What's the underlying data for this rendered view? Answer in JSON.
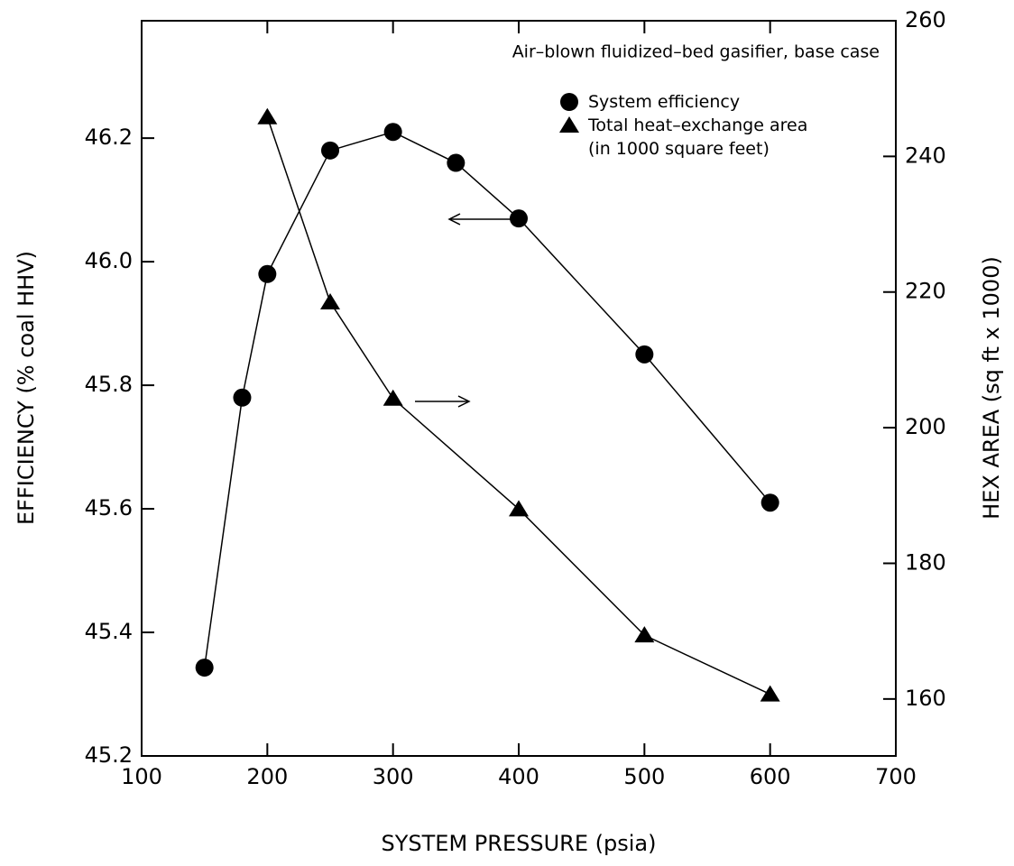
{
  "chart_data": {
    "type": "line",
    "annotation": "Air–blown fluidized–bed gasifier, base case",
    "x_label": "SYSTEM PRESSURE (psia)",
    "y_label": "EFFICIENCY (% coal HHV)",
    "y2_label": "HEX AREA (sq ft x 1000)",
    "xlim": [
      100,
      700
    ],
    "xticks": [
      100,
      200,
      300,
      400,
      500,
      600,
      700
    ],
    "ylim": [
      45.2,
      46.39
    ],
    "yticks": [
      45.2,
      45.4,
      45.6,
      45.8,
      {
        "value": 46,
        "label": "46.0"
      },
      46.2
    ],
    "y2lim": [
      151.6,
      260
    ],
    "y2ticks": [
      160,
      180,
      200,
      220,
      240,
      260
    ],
    "series": [
      {
        "name": "System efficiency",
        "color": "#000000",
        "marker": "circle",
        "x": [
          150,
          180,
          200,
          250,
          300,
          350,
          400,
          500,
          600
        ],
        "values": [
          45.343,
          45.78,
          45.98,
          46.18,
          46.21,
          46.16,
          46.07,
          45.85,
          45.61
        ]
      },
      {
        "name": "Total heat–exchange area (in 1000 square feet)",
        "color": "#000000",
        "marker": "triangle",
        "axis": "y2",
        "x": [
          200,
          250,
          300,
          400,
          500,
          600
        ],
        "values": [
          245.8,
          218.5,
          204.3,
          188,
          169.4,
          160.7
        ]
      }
    ]
  }
}
